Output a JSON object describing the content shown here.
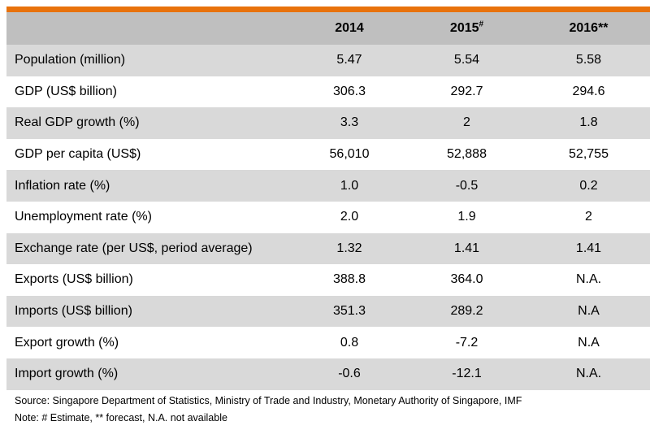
{
  "colors": {
    "accent_bar": "#e8720c",
    "header_bg": "#bfbfbf",
    "row_shaded": "#d9d9d9",
    "row_plain": "#ffffff"
  },
  "table": {
    "headers": [
      {
        "label": "",
        "sup": ""
      },
      {
        "label": "2014",
        "sup": ""
      },
      {
        "label": "2015",
        "sup": "#"
      },
      {
        "label": "2016**",
        "sup": ""
      }
    ],
    "rows": [
      [
        "Population (million)",
        "5.47",
        "5.54",
        "5.58"
      ],
      [
        "GDP (US$ billion)",
        "306.3",
        "292.7",
        "294.6"
      ],
      [
        "Real GDP growth (%)",
        "3.3",
        "2",
        "1.8"
      ],
      [
        "GDP per capita (US$)",
        "56,010",
        "52,888",
        "52,755"
      ],
      [
        "Inflation rate (%)",
        "1.0",
        "-0.5",
        "0.2"
      ],
      [
        "Unemployment rate (%)",
        "2.0",
        "1.9",
        "2"
      ],
      [
        "Exchange rate (per US$, period average)",
        "1.32",
        "1.41",
        "1.41"
      ],
      [
        "Exports (US$ billion)",
        "388.8",
        "364.0",
        "N.A."
      ],
      [
        "Imports (US$ billion)",
        "351.3",
        "289.2",
        "N.A"
      ],
      [
        "Export growth (%)",
        "0.8",
        "-7.2",
        "N.A"
      ],
      [
        "Import growth (%)",
        "-0.6",
        "-12.1",
        "N.A."
      ]
    ]
  },
  "notes": {
    "source": "Source: Singapore Department of Statistics, Ministry of Trade and Industry, Monetary Authority of Singapore, IMF",
    "legend": "Note: # Estimate, ** forecast, N.A. not available"
  }
}
